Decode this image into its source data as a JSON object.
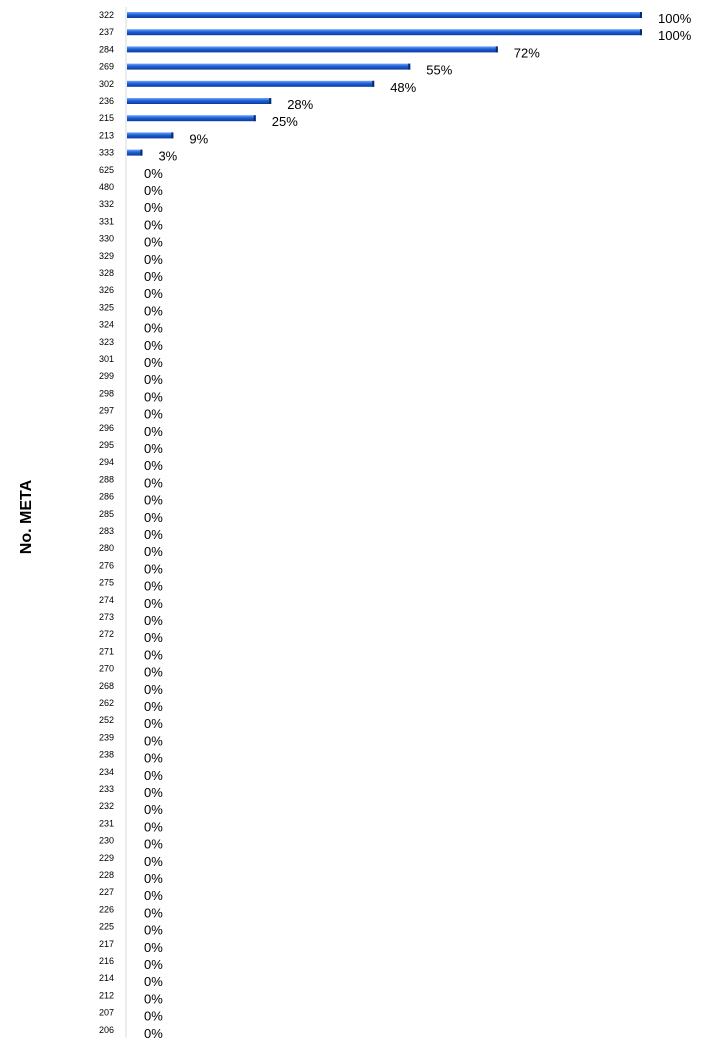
{
  "chart_data": {
    "type": "bar",
    "orientation": "horizontal",
    "title": "",
    "xlabel": "",
    "ylabel": "No. META",
    "xlim": [
      0,
      100
    ],
    "grid": false,
    "value_suffix": "%",
    "bar_color": "#1f5fd6",
    "categories": [
      "322",
      "237",
      "284",
      "269",
      "302",
      "236",
      "215",
      "213",
      "333",
      "625",
      "480",
      "332",
      "331",
      "330",
      "329",
      "328",
      "326",
      "325",
      "324",
      "323",
      "301",
      "299",
      "298",
      "297",
      "296",
      "295",
      "294",
      "288",
      "286",
      "285",
      "283",
      "280",
      "276",
      "275",
      "274",
      "273",
      "272",
      "271",
      "270",
      "268",
      "262",
      "252",
      "239",
      "238",
      "234",
      "233",
      "232",
      "231",
      "230",
      "229",
      "228",
      "227",
      "226",
      "225",
      "217",
      "216",
      "214",
      "212",
      "207",
      "206"
    ],
    "values": [
      100,
      100,
      72,
      55,
      48,
      28,
      25,
      9,
      3,
      0,
      0,
      0,
      0,
      0,
      0,
      0,
      0,
      0,
      0,
      0,
      0,
      0,
      0,
      0,
      0,
      0,
      0,
      0,
      0,
      0,
      0,
      0,
      0,
      0,
      0,
      0,
      0,
      0,
      0,
      0,
      0,
      0,
      0,
      0,
      0,
      0,
      0,
      0,
      0,
      0,
      0,
      0,
      0,
      0,
      0,
      0,
      0,
      0,
      0,
      0
    ],
    "data_labels": [
      "100%",
      "100%",
      "72%",
      "55%",
      "48%",
      "28%",
      "25%",
      "9%",
      "3%",
      "0%",
      "0%",
      "0%",
      "0%",
      "0%",
      "0%",
      "0%",
      "0%",
      "0%",
      "0%",
      "0%",
      "0%",
      "0%",
      "0%",
      "0%",
      "0%",
      "0%",
      "0%",
      "0%",
      "0%",
      "0%",
      "0%",
      "0%",
      "0%",
      "0%",
      "0%",
      "0%",
      "0%",
      "0%",
      "0%",
      "0%",
      "0%",
      "0%",
      "0%",
      "0%",
      "0%",
      "0%",
      "0%",
      "0%",
      "0%",
      "0%",
      "0%",
      "0%",
      "0%",
      "0%",
      "0%",
      "0%",
      "0%",
      "0%",
      "0%",
      "0%"
    ]
  }
}
